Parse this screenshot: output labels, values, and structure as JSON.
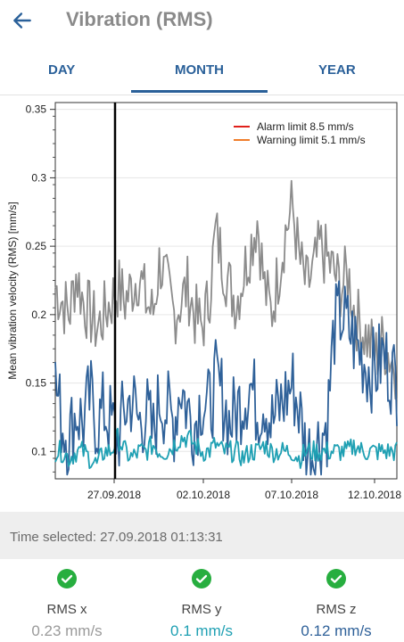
{
  "header": {
    "title": "Vibration (RMS)"
  },
  "tabs": [
    {
      "label": "DAY"
    },
    {
      "label": "MONTH"
    },
    {
      "label": "YEAR"
    }
  ],
  "colors": {
    "accent": "#2a6099",
    "alarm": "#e0201b",
    "warning": "#f07d2a",
    "series_x": "#8c8c8c",
    "series_y": "#2f6199",
    "series_z": "#1fa0b3",
    "ok": "#27ae3f"
  },
  "chart_data": {
    "type": "line",
    "ylabel": "Mean vibration velocity (RMS) [mm/s]",
    "ylim": [
      0.08,
      0.355
    ],
    "yticks": [
      "0.1",
      "0.15",
      "0.2",
      "0.25",
      "0.3",
      "0.35"
    ],
    "xticks": [
      "27.09.2018",
      "02.10.2018",
      "07.10.2018",
      "12.10.2018"
    ],
    "grid": true,
    "legend_position": "top-right",
    "legend": [
      {
        "label": "Alarm limit  8.5 mm/s",
        "color": "#e0201b"
      },
      {
        "label": "Warning limit 5.1 mm/s",
        "color": "#f07d2a"
      }
    ],
    "selected_marker": "27.09.2018 01:13:31",
    "series": [
      {
        "color": "#8c8c8c",
        "values": [
          0.22,
          0.21,
          0.2,
          0.23,
          0.21,
          0.2,
          0.19,
          0.2,
          0.21,
          0.22,
          0.21,
          0.22,
          0.23,
          0.21,
          0.2,
          0.24,
          0.22,
          0.2,
          0.21,
          0.22,
          0.2,
          0.19,
          0.21,
          0.26,
          0.24,
          0.22,
          0.21,
          0.23,
          0.25,
          0.27,
          0.22,
          0.2,
          0.23,
          0.26,
          0.28,
          0.24,
          0.22,
          0.23,
          0.25,
          0.24,
          0.23,
          0.22,
          0.23,
          0.2,
          0.19,
          0.18,
          0.17,
          0.18,
          0.17,
          0.16
        ]
      },
      {
        "color": "#2f6199",
        "values": [
          0.15,
          0.12,
          0.11,
          0.13,
          0.12,
          0.14,
          0.12,
          0.13,
          0.12,
          0.11,
          0.13,
          0.14,
          0.12,
          0.13,
          0.11,
          0.14,
          0.13,
          0.12,
          0.15,
          0.13,
          0.12,
          0.14,
          0.13,
          0.15,
          0.14,
          0.12,
          0.13,
          0.14,
          0.15,
          0.13,
          0.14,
          0.12,
          0.13,
          0.14,
          0.15,
          0.13,
          0.1,
          0.1,
          0.11,
          0.12,
          0.19,
          0.2,
          0.19,
          0.18,
          0.17,
          0.16,
          0.16,
          0.17,
          0.16,
          0.15
        ]
      },
      {
        "color": "#1fa0b3",
        "values": [
          0.1,
          0.1,
          0.095,
          0.1,
          0.1,
          0.095,
          0.09,
          0.1,
          0.1,
          0.11,
          0.1,
          0.095,
          0.1,
          0.1,
          0.105,
          0.1,
          0.1,
          0.105,
          0.11,
          0.11,
          0.105,
          0.1,
          0.1,
          0.105,
          0.1,
          0.1,
          0.1,
          0.095,
          0.1,
          0.1,
          0.105,
          0.1,
          0.1,
          0.1,
          0.1,
          0.095,
          0.1,
          0.1,
          0.1,
          0.1,
          0.1,
          0.1,
          0.1,
          0.105,
          0.1,
          0.1,
          0.1,
          0.1,
          0.1,
          0.1
        ]
      }
    ]
  },
  "time_selected": "Time selected: 27.09.2018 01:13:31",
  "metrics": [
    {
      "label": "RMS x",
      "value": "0.23 mm/s",
      "color": "#8c8c8c"
    },
    {
      "label": "RMS y",
      "value": "0.1 mm/s",
      "color": "#1fa0b3"
    },
    {
      "label": "RMS z",
      "value": "0.12 mm/s",
      "color": "#2f6199"
    }
  ]
}
